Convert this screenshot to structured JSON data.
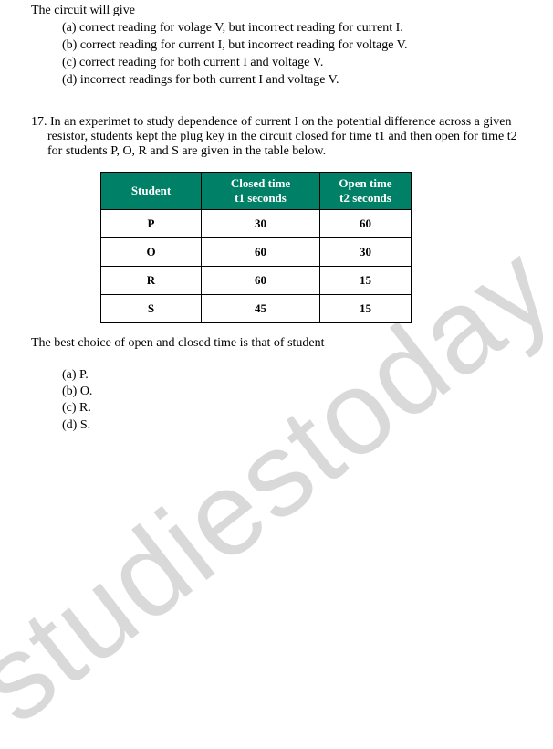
{
  "q16": {
    "stem": "The circuit will give",
    "options": [
      "(a)  correct reading for volage V, but incorrect reading for current I.",
      "(b)  correct reading for current I, but incorrect reading for voltage V.",
      "(c)  correct reading for both current I and voltage V.",
      "(d)  incorrect readings for both current I and voltage V."
    ]
  },
  "q17": {
    "number": "17.",
    "text": "In an experimet to study dependence of current I on the potential difference across a given resistor, students kept the plug key in the circuit closed for time t1 and then open for time t2 for students P, O, R and S are given in the table below.",
    "table": {
      "headers": {
        "student": "Student",
        "closed_line1": "Closed time",
        "closed_line2": "t1 seconds",
        "open_line1": "Open time",
        "open_line2": "t2 seconds"
      },
      "rows": [
        {
          "student": "P",
          "closed": "30",
          "open": "60"
        },
        {
          "student": "O",
          "closed": "60",
          "open": "30"
        },
        {
          "student": "R",
          "closed": "60",
          "open": "15"
        },
        {
          "student": "S",
          "closed": "45",
          "open": "15"
        }
      ],
      "header_bg": "#008066",
      "header_color": "#ffffff",
      "border_color": "#000000"
    },
    "after_table": "The best choice of open and closed time is that of student",
    "options": [
      "(a) P.",
      "(b) O.",
      "(c) R.",
      "(d) S."
    ]
  },
  "watermark": "studiestoday"
}
